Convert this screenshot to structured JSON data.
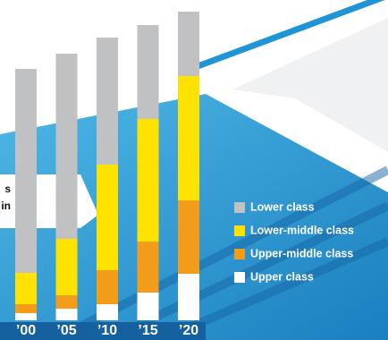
{
  "chart_data": {
    "type": "stacked-bar",
    "annotation_fragments": [
      "s",
      "in"
    ],
    "categories": [
      "’00",
      "’05",
      "’10",
      "’15",
      "’20"
    ],
    "series": [
      {
        "name": "Upper class",
        "color": "#ffffff",
        "values": [
          8,
          13,
          18,
          31,
          52
        ]
      },
      {
        "name": "Upper-middle class",
        "color": "#f39c1a",
        "values": [
          10,
          15,
          38,
          57,
          82
        ]
      },
      {
        "name": "Lower-middle class",
        "color": "#ffe200",
        "values": [
          35,
          63,
          118,
          137,
          139
        ]
      },
      {
        "name": "Lower class",
        "color": "#bfc1c3",
        "values": [
          228,
          207,
          142,
          105,
          72
        ]
      }
    ],
    "ylim": [
      0,
      345
    ]
  }
}
